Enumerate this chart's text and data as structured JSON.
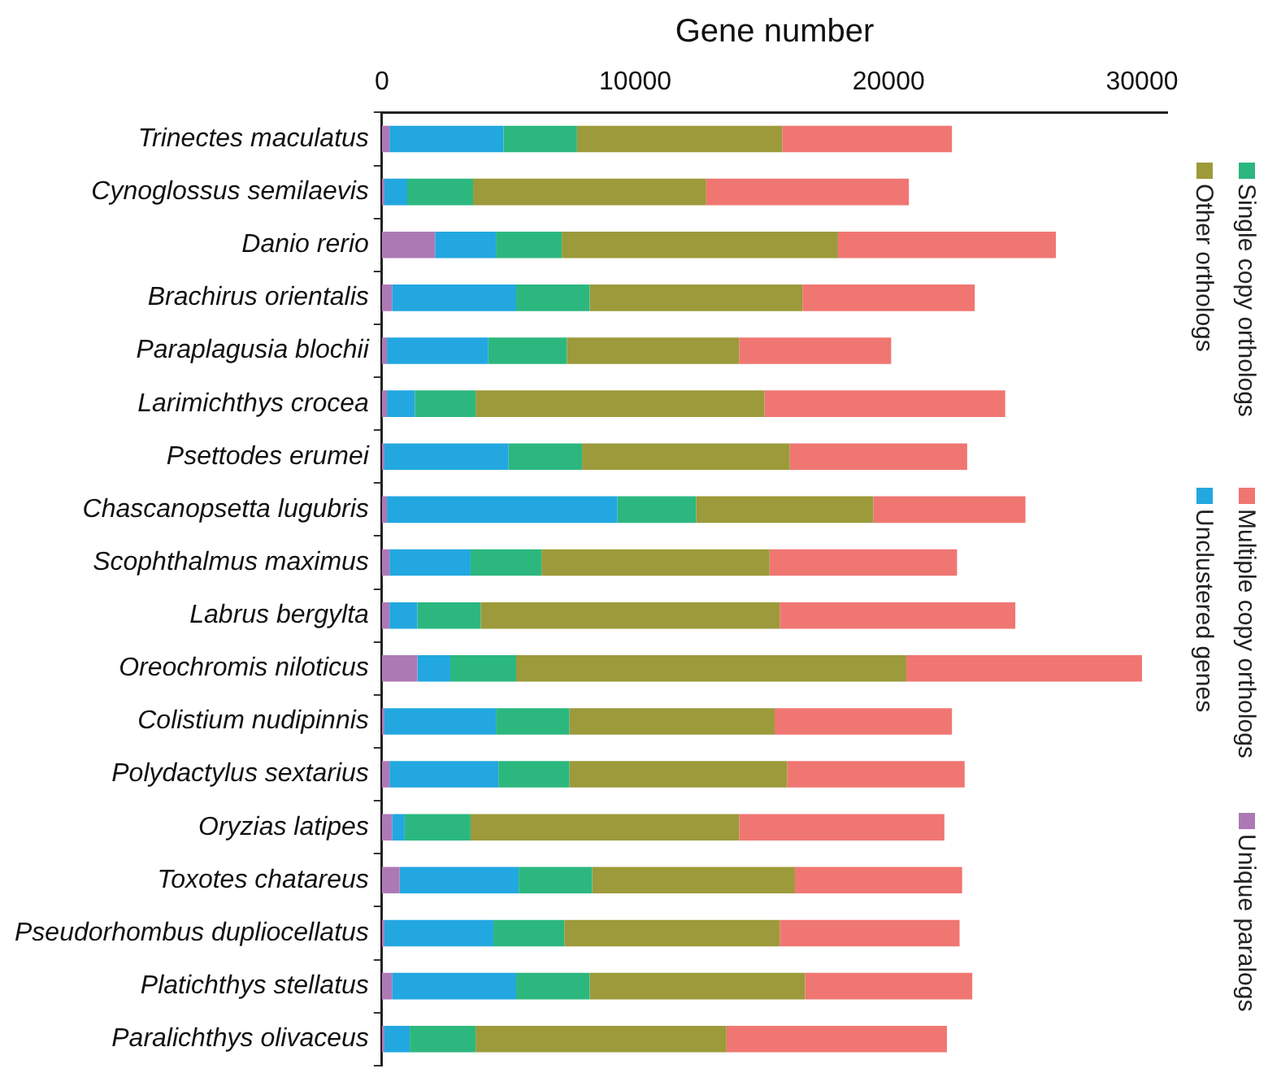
{
  "chart_data": {
    "type": "bar",
    "orientation": "horizontal",
    "stacked": true,
    "xlabel": "Gene number",
    "xlim": [
      0,
      31000
    ],
    "xticks": [
      0,
      10000,
      20000,
      30000
    ],
    "grid": false,
    "legend": "right",
    "categories": [
      "Trinectes maculatus",
      "Cynoglossus semilaevis",
      "Danio rerio",
      "Brachirus orientalis",
      "Paraplagusia blochii",
      "Larimichthys crocea",
      "Psettodes erumei",
      "Chascanopsetta lugubris",
      "Scophthalmus maximus",
      "Labrus bergylta",
      "Oreochromis niloticus",
      "Colistium nudipinnis",
      "Polydactylus sextarius",
      "Oryzias latipes",
      "Toxotes chatareus",
      "Pseudorhombus dupliocellatus",
      "Platichthys stellatus",
      "Paralichthys olivaceus"
    ],
    "series": [
      {
        "name": "Unique paralogs",
        "color": "#ad79b5",
        "values": [
          300,
          100,
          2100,
          400,
          200,
          200,
          100,
          200,
          300,
          300,
          1400,
          100,
          300,
          400,
          700,
          100,
          400,
          100
        ]
      },
      {
        "name": "Unclustered genes",
        "color": "#22a7e0",
        "values": [
          4500,
          900,
          2400,
          4900,
          4000,
          1100,
          4900,
          9100,
          3200,
          1100,
          1300,
          4400,
          4300,
          500,
          4700,
          4300,
          4900,
          1000
        ]
      },
      {
        "name": "Single copy orthologs",
        "color": "#2cb77f",
        "values": [
          2900,
          2600,
          2600,
          2900,
          3100,
          2400,
          2900,
          3100,
          2800,
          2500,
          2600,
          2900,
          2800,
          2600,
          2900,
          2800,
          2900,
          2600
        ]
      },
      {
        "name": "Other orthologs",
        "color": "#9c9a3a",
        "values": [
          8100,
          9200,
          10900,
          8400,
          6800,
          11400,
          8200,
          7000,
          9000,
          11800,
          15400,
          8100,
          8600,
          10600,
          8000,
          8500,
          8500,
          9900
        ]
      },
      {
        "name": "Multiple copy orthologs",
        "color": "#f07672",
        "values": [
          6700,
          8000,
          8600,
          6800,
          6000,
          9500,
          7000,
          6000,
          7400,
          9300,
          9300,
          7000,
          7000,
          8100,
          6600,
          7100,
          6600,
          8700
        ]
      }
    ]
  }
}
